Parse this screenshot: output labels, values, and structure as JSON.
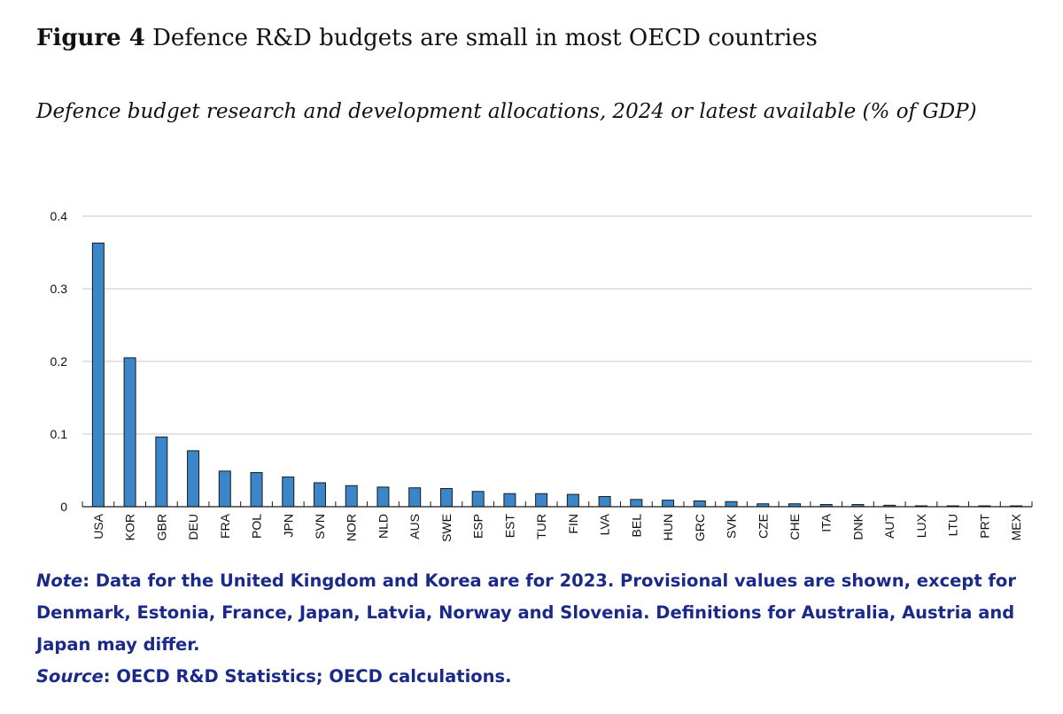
{
  "figure": {
    "label": "Figure 4",
    "title": "Defence R&D budgets are small in most OECD countries",
    "subtitle": "Defence budget research and development allocations, 2024 or latest available (% of GDP)"
  },
  "chart_data": {
    "type": "bar",
    "categories": [
      "USA",
      "KOR",
      "GBR",
      "DEU",
      "FRA",
      "POL",
      "JPN",
      "SVN",
      "NOR",
      "NLD",
      "AUS",
      "SWE",
      "ESP",
      "EST",
      "TUR",
      "FIN",
      "LVA",
      "BEL",
      "HUN",
      "GRC",
      "SVK",
      "CZE",
      "CHE",
      "ITA",
      "DNK",
      "AUT",
      "LUX",
      "LTU",
      "PRT",
      "MEX"
    ],
    "values": [
      0.363,
      0.205,
      0.096,
      0.077,
      0.049,
      0.047,
      0.041,
      0.033,
      0.029,
      0.027,
      0.026,
      0.025,
      0.021,
      0.018,
      0.018,
      0.017,
      0.014,
      0.01,
      0.009,
      0.008,
      0.007,
      0.004,
      0.004,
      0.003,
      0.003,
      0.002,
      0.001,
      0.001,
      0.001,
      0.0005
    ],
    "yticks": [
      "0",
      "0.1",
      "0.2",
      "0.3",
      "0.4"
    ],
    "ylim": [
      0,
      0.4
    ],
    "grid": true,
    "bar_color": "#3a86c8"
  },
  "notes": {
    "note_label": "Note",
    "note_text": ": Data for the United Kingdom and Korea are for 2023. Provisional values are shown, except for Denmark, Estonia, France, Japan, Latvia, Norway and Slovenia. Definitions for Australia, Austria and Japan may differ.",
    "source_label": "Source",
    "source_text": ": OECD R&D Statistics; OECD calculations."
  }
}
